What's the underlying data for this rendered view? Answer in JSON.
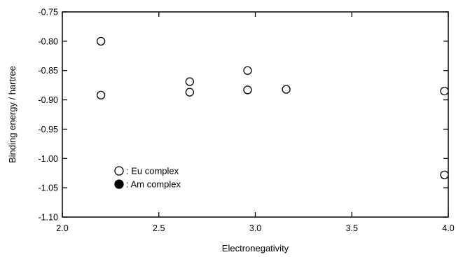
{
  "chart_data": {
    "type": "scatter",
    "xlabel": "Electronegativity",
    "ylabel": "Binding energy / hartree",
    "xlim": [
      2.0,
      4.0
    ],
    "ylim": [
      -1.1,
      -0.75
    ],
    "xticks": [
      2.0,
      2.5,
      3.0,
      3.5,
      4.0
    ],
    "xtick_labels": [
      "2.0",
      "2.5",
      "3.0",
      "3.5",
      "4.0"
    ],
    "yticks": [
      -0.75,
      -0.8,
      -0.85,
      -0.9,
      -0.95,
      -1.0,
      -1.05,
      -1.1
    ],
    "ytick_labels": [
      "-0.75",
      "-0.80",
      "-0.85",
      "-0.90",
      "-0.95",
      "-1.00",
      "-1.05",
      "-1.10"
    ],
    "grid": false,
    "legend_position": "bottom-left",
    "series": [
      {
        "name": "Eu complex",
        "marker": "open-circle",
        "color": "#000000",
        "points": [
          {
            "x": 2.2,
            "y": -0.8
          },
          {
            "x": 2.2,
            "y": -0.892
          },
          {
            "x": 2.66,
            "y": -0.869
          },
          {
            "x": 2.66,
            "y": -0.887
          },
          {
            "x": 2.96,
            "y": -0.85
          },
          {
            "x": 2.96,
            "y": -0.883
          },
          {
            "x": 3.16,
            "y": -0.882
          },
          {
            "x": 3.98,
            "y": -0.885
          },
          {
            "x": 3.98,
            "y": -1.028
          }
        ]
      },
      {
        "name": "Am complex",
        "marker": "filled-circle",
        "color": "#000000",
        "points": []
      }
    ],
    "legend": [
      {
        "label": ": Eu complex",
        "marker": "open-circle"
      },
      {
        "label": ": Am complex",
        "marker": "filled-circle"
      }
    ]
  }
}
